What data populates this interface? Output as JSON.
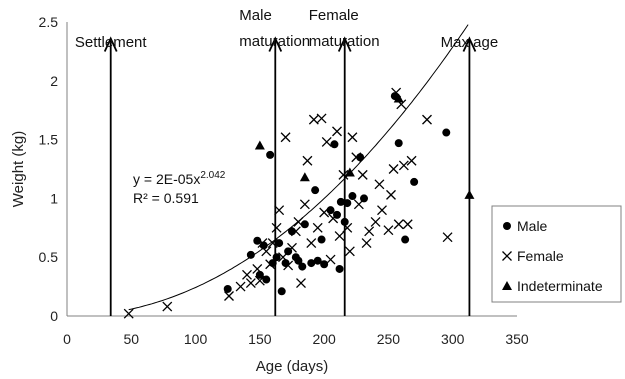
{
  "chart_data": {
    "type": "scatter",
    "xlabel": "Age (days)",
    "ylabel": "Weight (kg)",
    "xlim": [
      0,
      350
    ],
    "ylim": [
      0,
      2.5
    ],
    "xticks": [
      "0",
      "50",
      "100",
      "150",
      "200",
      "250",
      "300",
      "350"
    ],
    "yticks": [
      "0",
      "0.5",
      "1",
      "1.5",
      "2",
      "2.5"
    ],
    "grid": false,
    "legend_position": "right",
    "trendline": {
      "equation_prefix": "y = 2E-05x",
      "equation_exponent": "2.042",
      "r_squared": "R² = 0.591",
      "coefficient": 2e-05,
      "exponent": 2.042,
      "x_range": [
        48,
        312
      ]
    },
    "annotations": [
      {
        "label": "Settlement",
        "x": 34,
        "y_top": 2.36,
        "label_line": "single"
      },
      {
        "label": [
          "Male",
          "maturation"
        ],
        "x": 162,
        "y_top": 2.36,
        "label_line": "double"
      },
      {
        "label": [
          "Female",
          "maturation"
        ],
        "x": 216,
        "y_top": 2.36,
        "label_line": "double"
      },
      {
        "label": "Max age",
        "x": 313,
        "y_top": 2.36,
        "label_line": "single"
      }
    ],
    "series": [
      {
        "name": "Male",
        "marker": "circle",
        "points": [
          [
            125,
            0.23
          ],
          [
            143,
            0.52
          ],
          [
            148,
            0.64
          ],
          [
            150,
            0.35
          ],
          [
            153,
            0.6
          ],
          [
            155,
            0.31
          ],
          [
            158,
            1.37
          ],
          [
            160,
            0.45
          ],
          [
            163,
            0.5
          ],
          [
            165,
            0.62
          ],
          [
            167,
            0.21
          ],
          [
            170,
            0.45
          ],
          [
            172,
            0.55
          ],
          [
            175,
            0.72
          ],
          [
            178,
            0.5
          ],
          [
            180,
            0.47
          ],
          [
            183,
            0.42
          ],
          [
            185,
            0.78
          ],
          [
            190,
            0.45
          ],
          [
            193,
            1.07
          ],
          [
            195,
            0.47
          ],
          [
            198,
            0.65
          ],
          [
            200,
            0.44
          ],
          [
            205,
            0.9
          ],
          [
            208,
            1.46
          ],
          [
            210,
            0.86
          ],
          [
            213,
            0.97
          ],
          [
            212,
            0.4
          ],
          [
            216,
            0.8
          ],
          [
            218,
            0.96
          ],
          [
            222,
            1.02
          ],
          [
            228,
            1.35
          ],
          [
            231,
            1.0
          ],
          [
            255,
            1.87
          ],
          [
            258,
            1.47
          ],
          [
            263,
            0.65
          ],
          [
            270,
            1.14
          ],
          [
            295,
            1.56
          ]
        ]
      },
      {
        "name": "Female",
        "marker": "x",
        "points": [
          [
            48,
            0.02
          ],
          [
            78,
            0.08
          ],
          [
            126,
            0.17
          ],
          [
            135,
            0.25
          ],
          [
            140,
            0.35
          ],
          [
            143,
            0.28
          ],
          [
            148,
            0.4
          ],
          [
            150,
            0.3
          ],
          [
            152,
            0.62
          ],
          [
            155,
            0.55
          ],
          [
            158,
            0.44
          ],
          [
            160,
            0.62
          ],
          [
            163,
            0.75
          ],
          [
            165,
            0.9
          ],
          [
            168,
            0.5
          ],
          [
            170,
            1.52
          ],
          [
            172,
            0.43
          ],
          [
            175,
            0.58
          ],
          [
            178,
            0.72
          ],
          [
            180,
            0.8
          ],
          [
            182,
            0.28
          ],
          [
            185,
            0.95
          ],
          [
            187,
            1.32
          ],
          [
            190,
            0.62
          ],
          [
            192,
            1.67
          ],
          [
            195,
            0.75
          ],
          [
            198,
            1.68
          ],
          [
            200,
            0.88
          ],
          [
            202,
            1.48
          ],
          [
            205,
            0.48
          ],
          [
            207,
            0.83
          ],
          [
            210,
            1.57
          ],
          [
            212,
            0.68
          ],
          [
            215,
            1.2
          ],
          [
            218,
            0.75
          ],
          [
            220,
            0.55
          ],
          [
            222,
            1.52
          ],
          [
            225,
            1.35
          ],
          [
            227,
            0.95
          ],
          [
            230,
            1.2
          ],
          [
            233,
            0.62
          ],
          [
            235,
            0.72
          ],
          [
            240,
            0.8
          ],
          [
            243,
            1.12
          ],
          [
            245,
            0.9
          ],
          [
            250,
            0.73
          ],
          [
            252,
            1.03
          ],
          [
            254,
            1.25
          ],
          [
            256,
            1.9
          ],
          [
            258,
            0.78
          ],
          [
            260,
            1.8
          ],
          [
            262,
            1.28
          ],
          [
            265,
            0.78
          ],
          [
            268,
            1.32
          ],
          [
            280,
            1.67
          ],
          [
            296,
            0.67
          ]
        ]
      },
      {
        "name": "Indeterminate",
        "marker": "triangle",
        "points": [
          [
            150,
            1.45
          ],
          [
            185,
            1.18
          ],
          [
            220,
            1.22
          ],
          [
            258,
            1.85
          ],
          [
            313,
            1.03
          ]
        ]
      }
    ]
  }
}
